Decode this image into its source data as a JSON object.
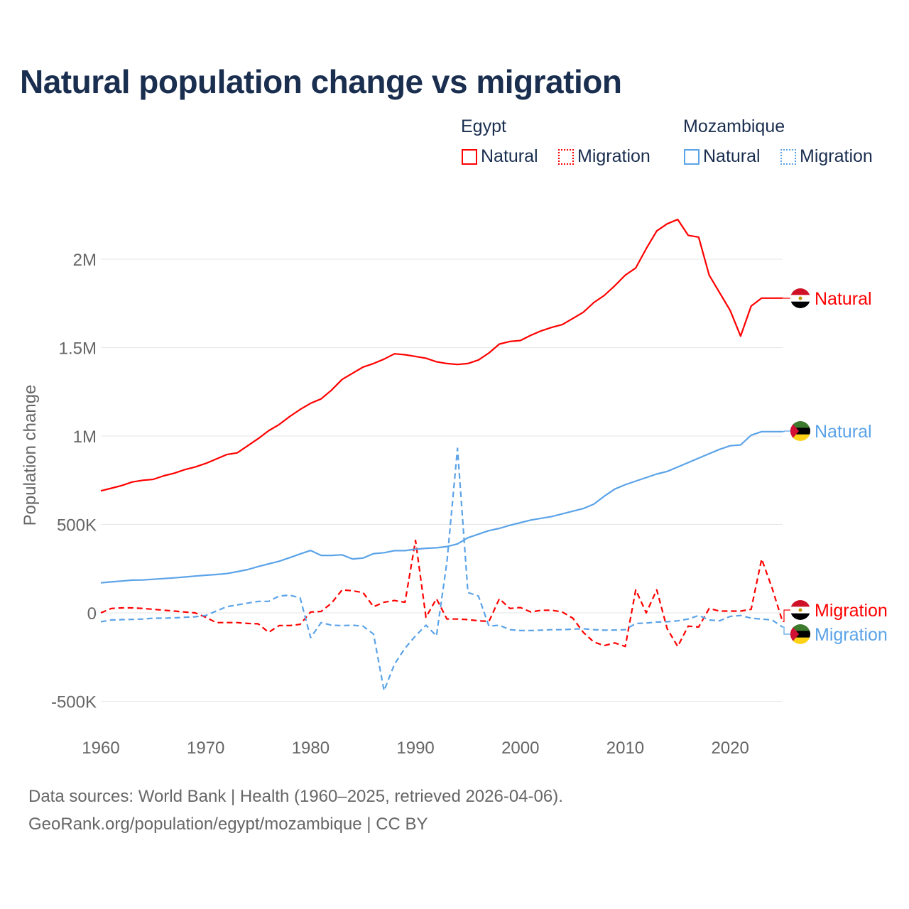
{
  "title": "Natural population change vs migration",
  "legend": {
    "groups": [
      {
        "name": "Egypt",
        "items": [
          "Natural",
          "Migration"
        ],
        "color": "#ff0000"
      },
      {
        "name": "Mozambique",
        "items": [
          "Natural",
          "Migration"
        ],
        "color": "#5ba3e8"
      }
    ]
  },
  "footer": {
    "line1": "Data sources: World Bank | Health (1960–2025, retrieved 2026-04-06).",
    "line2": "GeoRank.org/population/egypt/mozambique | CC BY"
  },
  "chart_data": {
    "type": "line",
    "title": "Natural population change vs migration",
    "xlabel": "",
    "ylabel": "Population change",
    "xlim": [
      1960,
      2025
    ],
    "ylim": [
      -500000,
      2250000
    ],
    "x_ticks": [
      1960,
      1970,
      1980,
      1990,
      2000,
      2010,
      2020
    ],
    "x_tick_labels": [
      "1960",
      "1970",
      "1980",
      "1990",
      "2000",
      "2010",
      "2020"
    ],
    "y_ticks": [
      -500000,
      0,
      500000,
      1000000,
      1500000,
      2000000
    ],
    "y_tick_labels": [
      "-500K",
      "0",
      "500K",
      "1M",
      "1.5M",
      "2M"
    ],
    "grid": true,
    "x_start": 1960,
    "series": [
      {
        "name": "Egypt Natural",
        "end_label": "Natural",
        "color": "#ff0000",
        "dash": false,
        "values_k": [
          690,
          705,
          720,
          740,
          750,
          755,
          775,
          790,
          810,
          825,
          845,
          870,
          895,
          905,
          945,
          985,
          1030,
          1065,
          1110,
          1150,
          1185,
          1210,
          1260,
          1320,
          1355,
          1390,
          1410,
          1435,
          1465,
          1460,
          1450,
          1440,
          1420,
          1410,
          1405,
          1410,
          1430,
          1470,
          1520,
          1535,
          1540,
          1570,
          1595,
          1615,
          1630,
          1665,
          1700,
          1755,
          1795,
          1850,
          1910,
          1950,
          2060,
          2160,
          2200,
          2225,
          2135,
          2125,
          1910,
          1810,
          1710,
          1565,
          1735,
          1780,
          1780,
          1780
        ]
      },
      {
        "name": "Egypt Migration",
        "end_label": "Migration",
        "color": "#ff0000",
        "dash": true,
        "values_k": [
          0,
          25,
          28,
          28,
          25,
          20,
          15,
          10,
          5,
          0,
          -25,
          -55,
          -55,
          -55,
          -60,
          -62,
          -110,
          -72,
          -72,
          -65,
          5,
          8,
          55,
          130,
          125,
          115,
          35,
          60,
          70,
          60,
          410,
          -25,
          80,
          -35,
          -35,
          -38,
          -45,
          -48,
          80,
          25,
          30,
          5,
          15,
          15,
          5,
          -30,
          -110,
          -165,
          -185,
          -170,
          -190,
          130,
          0,
          130,
          -90,
          -190,
          -75,
          -80,
          25,
          10,
          10,
          10,
          20,
          305,
          140,
          -50
        ]
      },
      {
        "name": "Mozambique Natural",
        "end_label": "Natural",
        "color": "#5ba3e8",
        "dash": false,
        "values_k": [
          170,
          175,
          180,
          185,
          186,
          190,
          194,
          198,
          203,
          208,
          213,
          217,
          222,
          233,
          245,
          262,
          277,
          292,
          312,
          333,
          353,
          325,
          325,
          328,
          305,
          310,
          335,
          340,
          352,
          352,
          360,
          365,
          368,
          375,
          390,
          425,
          445,
          465,
          478,
          495,
          510,
          525,
          535,
          545,
          560,
          575,
          590,
          615,
          660,
          700,
          725,
          745,
          765,
          785,
          800,
          825,
          850,
          875,
          900,
          925,
          945,
          950,
          1005,
          1025,
          1025,
          1025
        ]
      },
      {
        "name": "Mozambique Migration",
        "end_label": "Migration",
        "color": "#5ba3e8",
        "dash": true,
        "values_k": [
          -50,
          -40,
          -38,
          -37,
          -35,
          -30,
          -30,
          -28,
          -25,
          -22,
          -15,
          10,
          35,
          45,
          55,
          65,
          65,
          95,
          100,
          85,
          -140,
          -55,
          -70,
          -72,
          -70,
          -75,
          -120,
          -440,
          -290,
          -200,
          -130,
          -70,
          -130,
          290,
          930,
          115,
          95,
          -75,
          -70,
          -95,
          -100,
          -100,
          -98,
          -95,
          -95,
          -92,
          -90,
          -95,
          -98,
          -97,
          -95,
          -60,
          -58,
          -52,
          -50,
          -45,
          -35,
          -15,
          -40,
          -45,
          -20,
          -15,
          -30,
          -35,
          -40,
          -80
        ]
      }
    ]
  }
}
